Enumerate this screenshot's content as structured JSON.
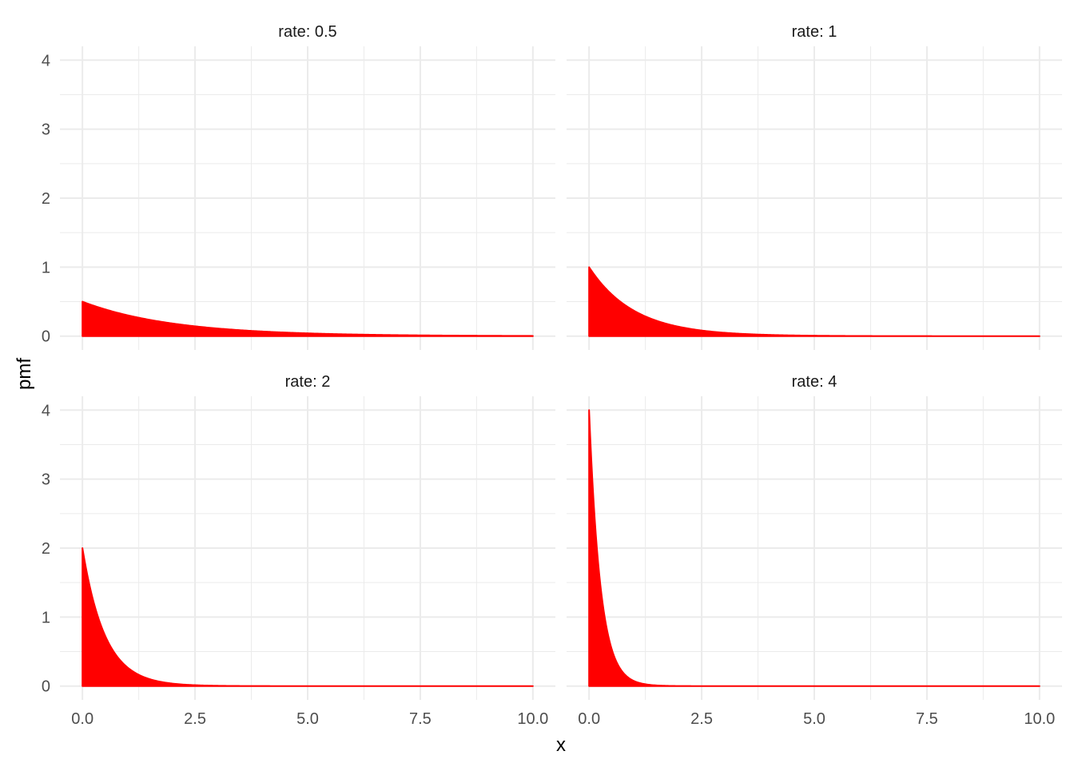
{
  "chart_data": {
    "type": "area",
    "xlabel": "x",
    "ylabel": "pmf",
    "xlim": [
      0,
      10
    ],
    "ylim": [
      0,
      4
    ],
    "x_ticks": [
      "0.0",
      "2.5",
      "5.0",
      "7.5",
      "10.0"
    ],
    "y_ticks": [
      "0",
      "1",
      "2",
      "3",
      "4"
    ],
    "grid": true,
    "legend": "none",
    "fill_color": "#ff0000",
    "panels": [
      {
        "label": "rate: 0.5",
        "rate": 0.5,
        "x": [
          0,
          0.5,
          1,
          1.5,
          2,
          2.5,
          3,
          4,
          5,
          6,
          7,
          8,
          9,
          10
        ],
        "y": [
          0.5,
          0.389,
          0.303,
          0.236,
          0.184,
          0.143,
          0.112,
          0.068,
          0.041,
          0.025,
          0.015,
          0.009,
          0.006,
          0.003
        ]
      },
      {
        "label": "rate: 1",
        "rate": 1,
        "x": [
          0,
          0.25,
          0.5,
          0.75,
          1,
          1.5,
          2,
          2.5,
          3,
          4,
          5,
          7.5,
          10
        ],
        "y": [
          1.0,
          0.779,
          0.607,
          0.472,
          0.368,
          0.223,
          0.135,
          0.082,
          0.05,
          0.018,
          0.007,
          0.001,
          0.0
        ]
      },
      {
        "label": "rate: 2",
        "rate": 2,
        "x": [
          0,
          0.25,
          0.5,
          0.75,
          1,
          1.5,
          2,
          2.5,
          3,
          4,
          5,
          7.5,
          10
        ],
        "y": [
          2.0,
          1.213,
          0.736,
          0.446,
          0.271,
          0.1,
          0.037,
          0.013,
          0.005,
          0.001,
          0.0,
          0.0,
          0.0
        ]
      },
      {
        "label": "rate: 4",
        "rate": 4,
        "x": [
          0,
          0.1,
          0.2,
          0.3,
          0.5,
          0.75,
          1,
          1.5,
          2,
          2.5,
          3,
          5,
          10
        ],
        "y": [
          4.0,
          2.681,
          1.797,
          1.205,
          0.541,
          0.199,
          0.073,
          0.01,
          0.001,
          0.0,
          0.0,
          0.0,
          0.0
        ]
      }
    ]
  }
}
